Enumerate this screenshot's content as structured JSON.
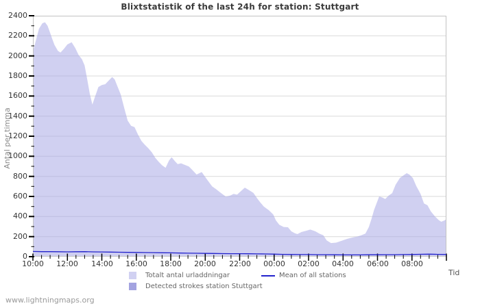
{
  "title": "Blixtstatistik of the last 24h for station: Stuttgart",
  "y_axis": {
    "label": "Antal per timma",
    "min": 0,
    "max": 2400,
    "major_tick_step": 200,
    "minor_tick_step": 100,
    "tick_labels": [
      "0",
      "200",
      "400",
      "600",
      "800",
      "1000",
      "1200",
      "1400",
      "1600",
      "1800",
      "2000",
      "2200",
      "2400"
    ]
  },
  "x_axis": {
    "label": "Tid",
    "tick_labels": [
      "10:00",
      "12:00",
      "14:00",
      "16:00",
      "18:00",
      "20:00",
      "22:00",
      "00:00",
      "02:00",
      "04:00",
      "06:00",
      "08:00"
    ],
    "major_tick_step_hours": 2,
    "minor_tick_step_hours": 0.5,
    "span_hours": 24
  },
  "legend": {
    "total": {
      "label": "Totalt antal urladdningar",
      "swatch_color": "#d1d1f2"
    },
    "detected": {
      "label": "Detected strokes station Stuttgart",
      "swatch_color": "#a3a3e0"
    },
    "mean": {
      "label": "Mean of all stations",
      "swatch_color": "#2222cc"
    }
  },
  "footer": "www.lightningmaps.org",
  "colors": {
    "background": "#ffffff",
    "plot_border": "#c2c2c2",
    "gridline": "#d9d9d9",
    "area_fill": "#d1d1f2",
    "detected_fill": "#a3a3e0",
    "mean_line": "#2222cc",
    "tick": "#000000"
  },
  "chart_data": {
    "type": "area",
    "title": "Blixtstatistik of the last 24h for station: Stuttgart",
    "xlabel": "Tid",
    "ylabel": "Antal per timma",
    "ylim": [
      0,
      2400
    ],
    "x_unit": "hours_since_10:00",
    "x_range_hours": [
      0,
      24
    ],
    "x_tick_labels": [
      "10:00",
      "12:00",
      "14:00",
      "16:00",
      "18:00",
      "20:00",
      "22:00",
      "00:00",
      "02:00",
      "04:00",
      "06:00",
      "08:00"
    ],
    "gridlines": "horizontal",
    "legend_position": "bottom",
    "series": [
      {
        "name": "Totalt antal urladdningar",
        "style": "area",
        "color": "#d1d1f2",
        "points": [
          [
            0,
            2045
          ],
          [
            0.2,
            2170
          ],
          [
            0.35,
            2270
          ],
          [
            0.55,
            2325
          ],
          [
            0.7,
            2335
          ],
          [
            0.85,
            2300
          ],
          [
            1,
            2230
          ],
          [
            1.1,
            2180
          ],
          [
            1.25,
            2110
          ],
          [
            1.45,
            2050
          ],
          [
            1.6,
            2034
          ],
          [
            1.8,
            2070
          ],
          [
            2,
            2114
          ],
          [
            2.25,
            2136
          ],
          [
            2.45,
            2080
          ],
          [
            2.65,
            2010
          ],
          [
            2.85,
            1965
          ],
          [
            3,
            1905
          ],
          [
            3.15,
            1770
          ],
          [
            3.3,
            1625
          ],
          [
            3.45,
            1515
          ],
          [
            3.6,
            1590
          ],
          [
            3.8,
            1690
          ],
          [
            4,
            1710
          ],
          [
            4.2,
            1718
          ],
          [
            4.4,
            1755
          ],
          [
            4.6,
            1790
          ],
          [
            4.75,
            1765
          ],
          [
            4.9,
            1700
          ],
          [
            5.1,
            1615
          ],
          [
            5.3,
            1480
          ],
          [
            5.5,
            1355
          ],
          [
            5.7,
            1303
          ],
          [
            5.9,
            1290
          ],
          [
            6.1,
            1216
          ],
          [
            6.3,
            1152
          ],
          [
            6.5,
            1114
          ],
          [
            6.7,
            1080
          ],
          [
            6.9,
            1040
          ],
          [
            7.1,
            985
          ],
          [
            7.3,
            945
          ],
          [
            7.5,
            910
          ],
          [
            7.7,
            886
          ],
          [
            7.9,
            958
          ],
          [
            8.05,
            990
          ],
          [
            8.25,
            950
          ],
          [
            8.4,
            922
          ],
          [
            8.6,
            930
          ],
          [
            8.85,
            912
          ],
          [
            9.05,
            898
          ],
          [
            9.25,
            864
          ],
          [
            9.5,
            818
          ],
          [
            9.8,
            843
          ],
          [
            10.1,
            770
          ],
          [
            10.4,
            700
          ],
          [
            10.65,
            670
          ],
          [
            10.9,
            636
          ],
          [
            11.2,
            598
          ],
          [
            11.45,
            608
          ],
          [
            11.65,
            625
          ],
          [
            11.85,
            618
          ],
          [
            12.05,
            650
          ],
          [
            12.3,
            688
          ],
          [
            12.55,
            662
          ],
          [
            12.8,
            635
          ],
          [
            13,
            585
          ],
          [
            13.2,
            540
          ],
          [
            13.4,
            500
          ],
          [
            13.7,
            462
          ],
          [
            13.95,
            420
          ],
          [
            14.1,
            362
          ],
          [
            14.3,
            318
          ],
          [
            14.55,
            296
          ],
          [
            14.8,
            293
          ],
          [
            15,
            252
          ],
          [
            15.2,
            234
          ],
          [
            15.35,
            225
          ],
          [
            15.6,
            246
          ],
          [
            15.85,
            257
          ],
          [
            16.1,
            270
          ],
          [
            16.4,
            252
          ],
          [
            16.65,
            228
          ],
          [
            16.85,
            214
          ],
          [
            17.05,
            162
          ],
          [
            17.3,
            136
          ],
          [
            17.6,
            140
          ],
          [
            17.95,
            160
          ],
          [
            18.25,
            178
          ],
          [
            18.55,
            191
          ],
          [
            18.8,
            199
          ],
          [
            19.05,
            212
          ],
          [
            19.3,
            230
          ],
          [
            19.5,
            295
          ],
          [
            19.65,
            375
          ],
          [
            19.8,
            466
          ],
          [
            19.95,
            532
          ],
          [
            20.1,
            600
          ],
          [
            20.3,
            588
          ],
          [
            20.45,
            575
          ],
          [
            20.65,
            608
          ],
          [
            20.85,
            632
          ],
          [
            21.05,
            716
          ],
          [
            21.3,
            784
          ],
          [
            21.55,
            815
          ],
          [
            21.7,
            832
          ],
          [
            21.85,
            818
          ],
          [
            22.05,
            784
          ],
          [
            22.25,
            705
          ],
          [
            22.5,
            625
          ],
          [
            22.7,
            530
          ],
          [
            22.9,
            512
          ],
          [
            23.1,
            450
          ],
          [
            23.35,
            398
          ],
          [
            23.55,
            365
          ],
          [
            23.7,
            348
          ],
          [
            23.9,
            362
          ],
          [
            24,
            375
          ]
        ]
      },
      {
        "name": "Detected strokes station Stuttgart",
        "style": "area",
        "color": "#a3a3e0",
        "points": [
          [
            0,
            0
          ],
          [
            24,
            0
          ]
        ]
      },
      {
        "name": "Mean of all stations",
        "style": "line",
        "color": "#2222cc",
        "points": [
          [
            0,
            52
          ],
          [
            0.5,
            50
          ],
          [
            1,
            50
          ],
          [
            1.5,
            49
          ],
          [
            2,
            48
          ],
          [
            2.5,
            49
          ],
          [
            3,
            50
          ],
          [
            3.5,
            48
          ],
          [
            4,
            47
          ],
          [
            4.5,
            46
          ],
          [
            5,
            44
          ],
          [
            5.5,
            43
          ],
          [
            6,
            42
          ],
          [
            6.5,
            41
          ],
          [
            7,
            40
          ],
          [
            7.5,
            39
          ],
          [
            8,
            38
          ],
          [
            8.5,
            36
          ],
          [
            9,
            35
          ],
          [
            9.5,
            34
          ],
          [
            10,
            33
          ],
          [
            10.5,
            32
          ],
          [
            11,
            31
          ],
          [
            11.5,
            30
          ],
          [
            12,
            30
          ],
          [
            12.5,
            29
          ],
          [
            13,
            28
          ],
          [
            13.5,
            27
          ],
          [
            14,
            25
          ],
          [
            14.5,
            23
          ],
          [
            15,
            22
          ],
          [
            15.5,
            21
          ],
          [
            16,
            21
          ],
          [
            16.5,
            20
          ],
          [
            17,
            20
          ],
          [
            17.5,
            19
          ],
          [
            18,
            18
          ],
          [
            18.5,
            18
          ],
          [
            19,
            18
          ],
          [
            19.5,
            19
          ],
          [
            20,
            19
          ],
          [
            20.5,
            20
          ],
          [
            21,
            20
          ],
          [
            21.5,
            21
          ],
          [
            22,
            22
          ],
          [
            22.5,
            24
          ],
          [
            23,
            25
          ],
          [
            23.5,
            23
          ],
          [
            24,
            22
          ]
        ]
      }
    ]
  }
}
